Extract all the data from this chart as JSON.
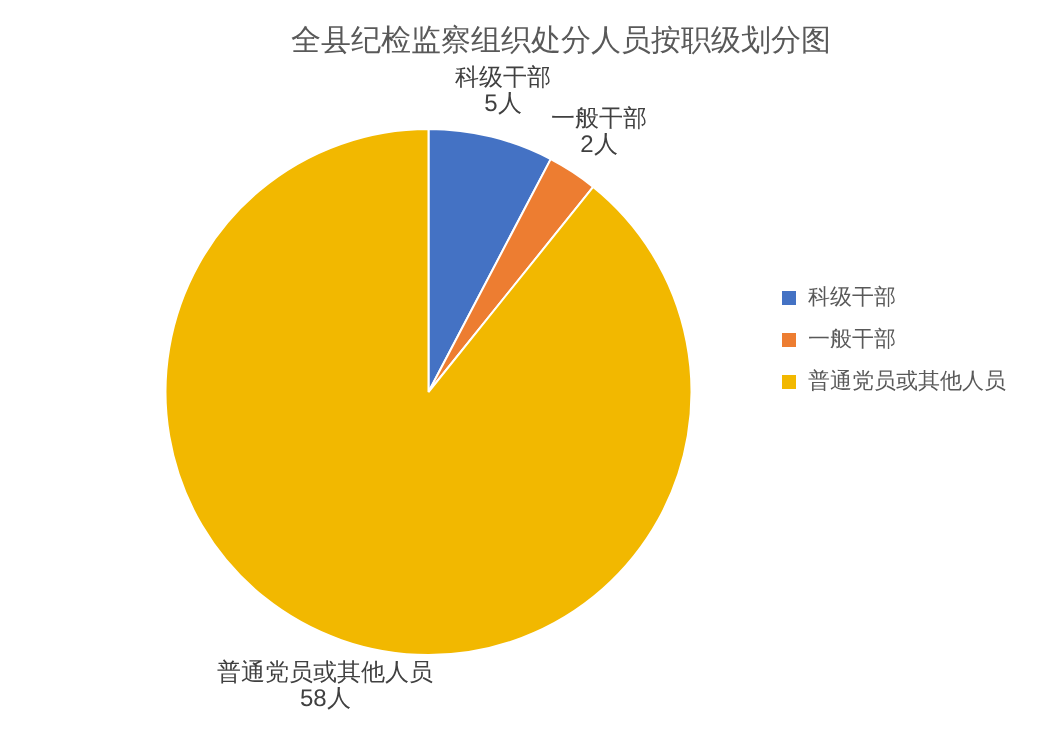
{
  "chart_data": {
    "type": "pie",
    "title": "全县纪检监察组织处分人员按职级划分图",
    "categories": [
      "科级干部",
      "一般干部",
      "普通党员或其他人员"
    ],
    "values": [
      5,
      2,
      58
    ],
    "colors": [
      "#4472c4",
      "#ed7d31",
      "#f2b800"
    ],
    "value_labels": [
      "5人",
      "2人",
      "58人"
    ],
    "legend": "right"
  }
}
